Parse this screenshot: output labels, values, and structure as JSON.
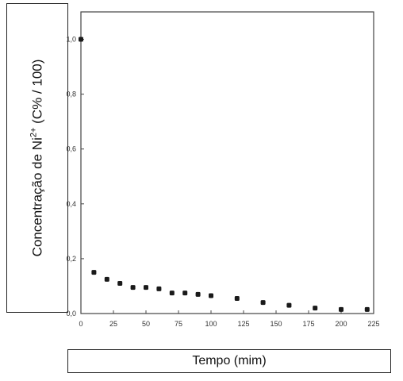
{
  "chart_data": {
    "type": "scatter",
    "title": "",
    "xlabel": "Tempo (mim)",
    "ylabel_prefix": "Concentração de Ni",
    "ylabel_sup": "2+",
    "ylabel_suffix": " (C% / 100)",
    "xlim": [
      0,
      225
    ],
    "ylim": [
      0.0,
      1.1
    ],
    "xticks": [
      0,
      25,
      50,
      75,
      100,
      125,
      150,
      175,
      200,
      225
    ],
    "yticks": [
      0.0,
      0.2,
      0.4,
      0.6,
      0.8,
      1.0
    ],
    "xtick_labels": [
      "0",
      "25",
      "50",
      "75",
      "100",
      "125",
      "150",
      "175",
      "200",
      "225"
    ],
    "ytick_labels": [
      "0,0",
      "0,2",
      "0,4",
      "0,6",
      "0,8",
      "1,0"
    ],
    "grid": false,
    "marker_color": "#1a1a1a",
    "x": [
      0,
      10,
      20,
      30,
      40,
      50,
      60,
      70,
      80,
      90,
      100,
      120,
      140,
      160,
      180,
      200,
      220
    ],
    "y": [
      1.0,
      0.15,
      0.125,
      0.11,
      0.095,
      0.095,
      0.09,
      0.075,
      0.075,
      0.07,
      0.065,
      0.055,
      0.04,
      0.03,
      0.02,
      0.015,
      0.015
    ]
  }
}
